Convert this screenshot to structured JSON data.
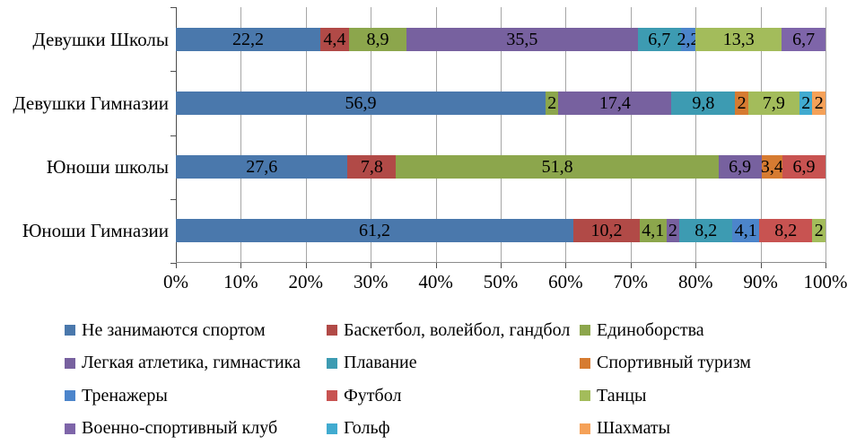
{
  "chart_data": {
    "type": "bar",
    "variant": "horizontal-100%-stacked",
    "categories": [
      "Девушки Школы",
      "Девушки Гимназии",
      "Юноши школы",
      "Юноши Гимназии"
    ],
    "series": [
      {
        "name": "Не занимаются спортом",
        "color": "#4a78ac",
        "values": [
          22.2,
          56.9,
          27.6,
          61.2
        ]
      },
      {
        "name": "Баскетбол, волейбол, гандбол",
        "color": "#b14a47",
        "values": [
          4.4,
          0,
          7.8,
          10.2
        ]
      },
      {
        "name": "Единоборства",
        "color": "#8ca64c",
        "values": [
          8.9,
          2,
          51.8,
          4.1
        ]
      },
      {
        "name": "Легкая атлетика, гимнастика",
        "color": "#77619f",
        "values": [
          35.5,
          17.4,
          6.9,
          2
        ]
      },
      {
        "name": "Плавание",
        "color": "#3d9bb2",
        "values": [
          6.7,
          9.8,
          0,
          8.2
        ]
      },
      {
        "name": "Спортивный туризм",
        "color": "#d67b31",
        "values": [
          0,
          2,
          3.4,
          0
        ]
      },
      {
        "name": "Тренажеры",
        "color": "#4c85cb",
        "values": [
          2.2,
          0,
          0,
          4.1
        ]
      },
      {
        "name": "Футбол",
        "color": "#c85351",
        "values": [
          0,
          0,
          6.9,
          8.2
        ]
      },
      {
        "name": "Танцы",
        "color": "#a3bc5b",
        "values": [
          13.3,
          7.9,
          0,
          2
        ]
      },
      {
        "name": "Военно-спортивный клуб",
        "color": "#7e65a9",
        "values": [
          6.7,
          0,
          0,
          0
        ]
      },
      {
        "name": "Гольф",
        "color": "#41abd0",
        "values": [
          0,
          2,
          0,
          0
        ]
      },
      {
        "name": "Шахматы",
        "color": "#f5a158",
        "values": [
          0,
          2,
          0,
          0
        ]
      }
    ],
    "x_ticks": [
      "0%",
      "10%",
      "20%",
      "30%",
      "40%",
      "50%",
      "60%",
      "70%",
      "80%",
      "90%",
      "100%"
    ],
    "xlim": [
      0,
      100
    ],
    "decimal_separator": ",",
    "grid": true,
    "grid_color": "#a6a6a6",
    "axis_color": "#4d4d4d",
    "legend_position": "bottom",
    "legend_columns": 3
  }
}
